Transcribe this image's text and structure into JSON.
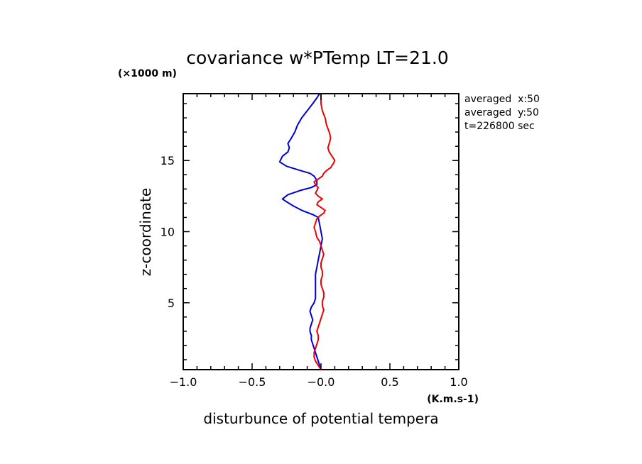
{
  "chart_data": {
    "type": "line",
    "title": "covariance w*PTemp LT=21.0",
    "xlabel": "disturbunce of potential tempera",
    "ylabel": "z-coordinate",
    "x_unit": "(K.m.s-1)",
    "y_unit": "(×1000 m)",
    "xlim": [
      -1.0,
      1.0
    ],
    "ylim": [
      0.3,
      19.7
    ],
    "x_ticks": [
      "−1.0",
      "−0.5",
      "−0.0",
      "0.5",
      "1.0"
    ],
    "x_tick_values": [
      -1.0,
      -0.5,
      0.0,
      0.5,
      1.0
    ],
    "y_ticks": [
      "5",
      "10",
      "15"
    ],
    "y_tick_values": [
      5,
      10,
      15
    ],
    "annotations": [
      "averaged  x:50",
      "averaged  y:50",
      "t=226800 sec"
    ],
    "colors": {
      "blue": "#0000dd",
      "red": "#ee0000"
    },
    "series": [
      {
        "color": "#0000dd",
        "points": [
          [
            0.0,
            0.3
          ],
          [
            -0.01,
            0.6
          ],
          [
            -0.02,
            0.9
          ],
          [
            -0.03,
            1.2
          ],
          [
            -0.04,
            1.5
          ],
          [
            -0.05,
            1.8
          ],
          [
            -0.06,
            2.1
          ],
          [
            -0.07,
            2.4
          ],
          [
            -0.07,
            2.7
          ],
          [
            -0.08,
            3.0
          ],
          [
            -0.08,
            3.2
          ],
          [
            -0.07,
            3.5
          ],
          [
            -0.06,
            3.8
          ],
          [
            -0.07,
            4.1
          ],
          [
            -0.08,
            4.4
          ],
          [
            -0.07,
            4.7
          ],
          [
            -0.05,
            5.0
          ],
          [
            -0.04,
            5.3
          ],
          [
            -0.04,
            5.6
          ],
          [
            -0.04,
            6.0
          ],
          [
            -0.04,
            6.5
          ],
          [
            -0.04,
            7.0
          ],
          [
            -0.03,
            7.5
          ],
          [
            -0.02,
            8.0
          ],
          [
            -0.01,
            8.5
          ],
          [
            0.0,
            9.0
          ],
          [
            0.01,
            9.5
          ],
          [
            0.0,
            10.0
          ],
          [
            -0.01,
            10.5
          ],
          [
            -0.02,
            11.0
          ],
          [
            -0.06,
            11.2
          ],
          [
            -0.14,
            11.5
          ],
          [
            -0.2,
            11.8
          ],
          [
            -0.25,
            12.1
          ],
          [
            -0.28,
            12.3
          ],
          [
            -0.24,
            12.6
          ],
          [
            -0.15,
            12.9
          ],
          [
            -0.07,
            13.1
          ],
          [
            -0.03,
            13.3
          ],
          [
            -0.03,
            13.6
          ],
          [
            -0.05,
            13.9
          ],
          [
            -0.08,
            14.1
          ],
          [
            -0.15,
            14.3
          ],
          [
            -0.25,
            14.6
          ],
          [
            -0.3,
            14.9
          ],
          [
            -0.28,
            15.3
          ],
          [
            -0.24,
            15.6
          ],
          [
            -0.23,
            15.9
          ],
          [
            -0.24,
            16.2
          ],
          [
            -0.22,
            16.5
          ],
          [
            -0.19,
            17.0
          ],
          [
            -0.17,
            17.5
          ],
          [
            -0.14,
            18.0
          ],
          [
            -0.1,
            18.5
          ],
          [
            -0.06,
            19.0
          ],
          [
            -0.03,
            19.4
          ],
          [
            -0.01,
            19.7
          ]
        ]
      },
      {
        "color": "#ee0000",
        "points": [
          [
            0.0,
            0.3
          ],
          [
            -0.02,
            0.6
          ],
          [
            -0.04,
            0.9
          ],
          [
            -0.05,
            1.2
          ],
          [
            -0.05,
            1.5
          ],
          [
            -0.04,
            1.8
          ],
          [
            -0.03,
            2.1
          ],
          [
            -0.02,
            2.4
          ],
          [
            -0.02,
            2.7
          ],
          [
            -0.03,
            3.0
          ],
          [
            -0.02,
            3.3
          ],
          [
            -0.01,
            3.6
          ],
          [
            0.0,
            3.9
          ],
          [
            0.01,
            4.2
          ],
          [
            0.02,
            4.5
          ],
          [
            0.01,
            4.8
          ],
          [
            0.01,
            5.1
          ],
          [
            0.02,
            5.4
          ],
          [
            0.02,
            5.7
          ],
          [
            0.01,
            6.0
          ],
          [
            0.0,
            6.3
          ],
          [
            0.0,
            6.6
          ],
          [
            0.01,
            6.9
          ],
          [
            0.01,
            7.2
          ],
          [
            0.0,
            7.5
          ],
          [
            0.0,
            7.8
          ],
          [
            0.01,
            8.1
          ],
          [
            0.02,
            8.4
          ],
          [
            0.01,
            8.7
          ],
          [
            0.0,
            9.0
          ],
          [
            -0.01,
            9.3
          ],
          [
            -0.03,
            9.6
          ],
          [
            -0.04,
            10.0
          ],
          [
            -0.05,
            10.3
          ],
          [
            -0.04,
            10.6
          ],
          [
            -0.03,
            10.9
          ],
          [
            -0.01,
            11.1
          ],
          [
            0.02,
            11.3
          ],
          [
            0.03,
            11.5
          ],
          [
            0.0,
            11.7
          ],
          [
            -0.03,
            11.9
          ],
          [
            -0.02,
            12.1
          ],
          [
            0.01,
            12.3
          ],
          [
            -0.02,
            12.5
          ],
          [
            -0.04,
            12.7
          ],
          [
            -0.03,
            12.9
          ],
          [
            -0.02,
            13.1
          ],
          [
            -0.04,
            13.3
          ],
          [
            -0.05,
            13.5
          ],
          [
            -0.02,
            13.7
          ],
          [
            0.01,
            13.9
          ],
          [
            0.02,
            14.1
          ],
          [
            0.04,
            14.3
          ],
          [
            0.07,
            14.5
          ],
          [
            0.09,
            14.8
          ],
          [
            0.1,
            15.0
          ],
          [
            0.08,
            15.3
          ],
          [
            0.06,
            15.6
          ],
          [
            0.05,
            15.9
          ],
          [
            0.06,
            16.2
          ],
          [
            0.07,
            16.6
          ],
          [
            0.06,
            17.0
          ],
          [
            0.04,
            17.5
          ],
          [
            0.03,
            18.0
          ],
          [
            0.01,
            18.5
          ],
          [
            0.0,
            19.0
          ],
          [
            0.0,
            19.4
          ],
          [
            0.0,
            19.7
          ]
        ]
      }
    ]
  }
}
